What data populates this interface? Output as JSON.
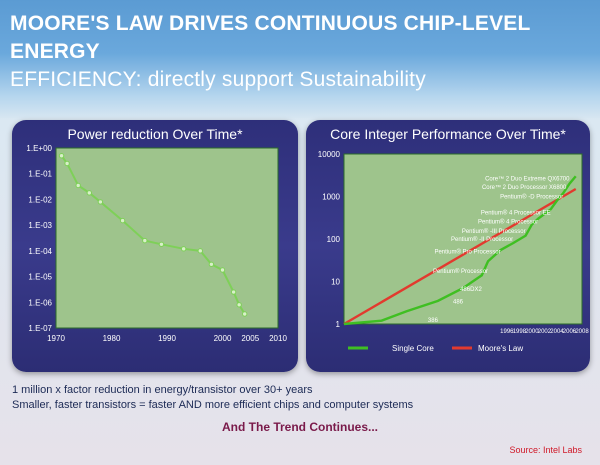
{
  "slide": {
    "title_line1": "MOORE'S LAW DRIVES CONTINUOUS CHIP-LEVEL ENERGY",
    "title_line2": "EFFICIENCY: directly support Sustainability",
    "bullets": [
      "1 million x factor reduction in energy/transistor over 30+ years",
      "Smaller, faster transistors = faster AND more efficient chips and computer systems"
    ],
    "trend": "And The Trend Continues...",
    "source": "Source: Intel Labs"
  },
  "colors": {
    "panel": "#33347f",
    "plot_bg": "#9ec48c",
    "single_core": "#3fbf22",
    "moores_law": "#e23a2e",
    "power_line": "#7ed058"
  },
  "chart_data": [
    {
      "type": "line",
      "title": "Power reduction Over Time*",
      "xlabel": "",
      "ylabel": "",
      "y_scale": "log",
      "xlim": [
        1970,
        2010
      ],
      "ylim": [
        1e-07,
        1
      ],
      "x_ticks": [
        "1970",
        "1980",
        "1990",
        "2000",
        "2005",
        "2010"
      ],
      "y_ticks": [
        "1.E+00",
        "1.E-01",
        "1.E-02",
        "1.E-03",
        "1.E-04",
        "1.E-05",
        "1.E-06",
        "1.E-07"
      ],
      "grid": false,
      "series": [
        {
          "x": [
            1971,
            1972,
            1974,
            1976,
            1978,
            1982,
            1986,
            1989,
            1993,
            1996,
            1998,
            2000,
            2002,
            2003,
            2004
          ],
          "y": [
            0.5,
            0.25,
            0.035,
            0.018,
            0.008,
            0.0015,
            0.00025,
            0.00018,
            0.00012,
            0.0001,
            3e-05,
            1.8e-05,
            2.5e-06,
            8e-07,
            3.5e-07
          ]
        }
      ]
    },
    {
      "type": "line",
      "title": "Core Integer Performance Over Time*",
      "xlabel": "",
      "ylabel": "",
      "y_scale": "log",
      "xlim": [
        1970,
        2008
      ],
      "ylim": [
        1,
        10000
      ],
      "x_ticks": [
        "1996",
        "1998",
        "2000",
        "2002",
        "2004",
        "2006",
        "2008"
      ],
      "y_ticks": [
        "10000",
        "1000",
        "100",
        "10",
        "1"
      ],
      "legend": "bottom",
      "grid": false,
      "annotations": [
        {
          "text": "Core™ 2 Duo Extreme QX6700",
          "x": 2006,
          "y": 2400
        },
        {
          "text": "Core™ 2 Duo Processor X6800",
          "x": 2005.5,
          "y": 1500
        },
        {
          "text": "Pentium® -D Processor",
          "x": 2005,
          "y": 900
        },
        {
          "text": "Pentium® 4 Processor EE",
          "x": 2003,
          "y": 380
        },
        {
          "text": "Pentium® 4 Processor",
          "x": 2001,
          "y": 230
        },
        {
          "text": "Pentium® -III Processor",
          "x": 1999,
          "y": 140
        },
        {
          "text": "Pentium® -II Processor",
          "x": 1997,
          "y": 90
        },
        {
          "text": "Pentium® Pro Processor",
          "x": 1995,
          "y": 45
        },
        {
          "text": "Pentium® Processor",
          "x": 1993,
          "y": 16
        },
        {
          "text": "486DX2",
          "x": 1992,
          "y": 6
        },
        {
          "text": "486",
          "x": 1989,
          "y": 3
        },
        {
          "text": "386",
          "x": 1985,
          "y": 1.1
        }
      ],
      "series": [
        {
          "name": "Single Core",
          "x": [
            1970,
            1976,
            1980,
            1985,
            1989,
            1992,
            1993,
            1995,
            1997,
            1999,
            2000,
            2001,
            2003,
            2004,
            2005,
            2006,
            2007
          ],
          "y": [
            1,
            1.2,
            2,
            3.5,
            7,
            14,
            30,
            55,
            80,
            120,
            220,
            300,
            500,
            800,
            1200,
            2000,
            3000
          ]
        },
        {
          "name": "Moore's Law",
          "x": [
            1970,
            2007
          ],
          "y": [
            1,
            1500
          ]
        }
      ]
    }
  ]
}
